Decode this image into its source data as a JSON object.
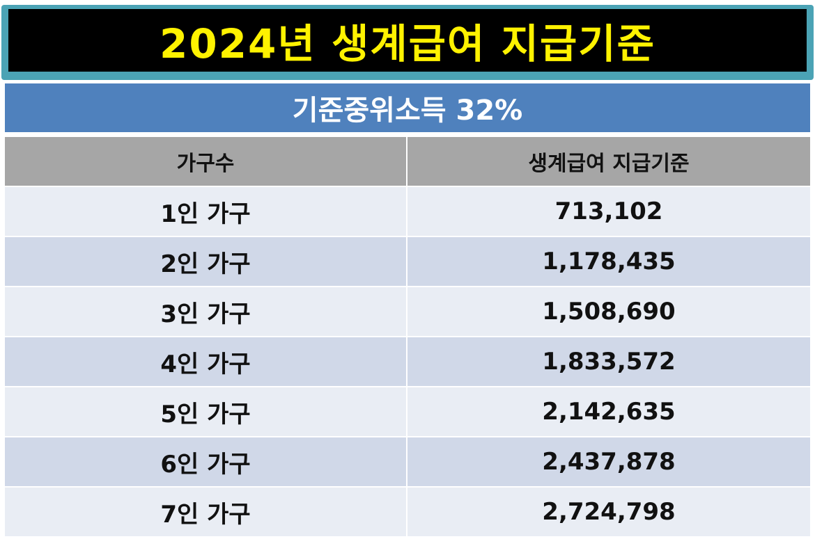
{
  "title": "2024년 생계급여 지급기준",
  "subtitle": "기준중위소득 32%",
  "table": {
    "headers": [
      "가구수",
      "생계급여 지급기준"
    ],
    "rows": [
      [
        "1인 가구",
        "713,102"
      ],
      [
        "2인 가구",
        "1,178,435"
      ],
      [
        "3인 가구",
        "1,508,690"
      ],
      [
        "4인 가구",
        "1,833,572"
      ],
      [
        "5인 가구",
        "2,142,635"
      ],
      [
        "6인 가구",
        "2,437,878"
      ],
      [
        "7인 가구",
        "2,724,798"
      ]
    ]
  },
  "colors": {
    "title_text": "#fff200",
    "title_background": "#000000",
    "title_border": "#4ba3b5",
    "subtitle_background": "#4f81bd",
    "header_background": "#a6a6a6",
    "row_light": "#e9edf4",
    "row_dark": "#d0d8e8"
  }
}
